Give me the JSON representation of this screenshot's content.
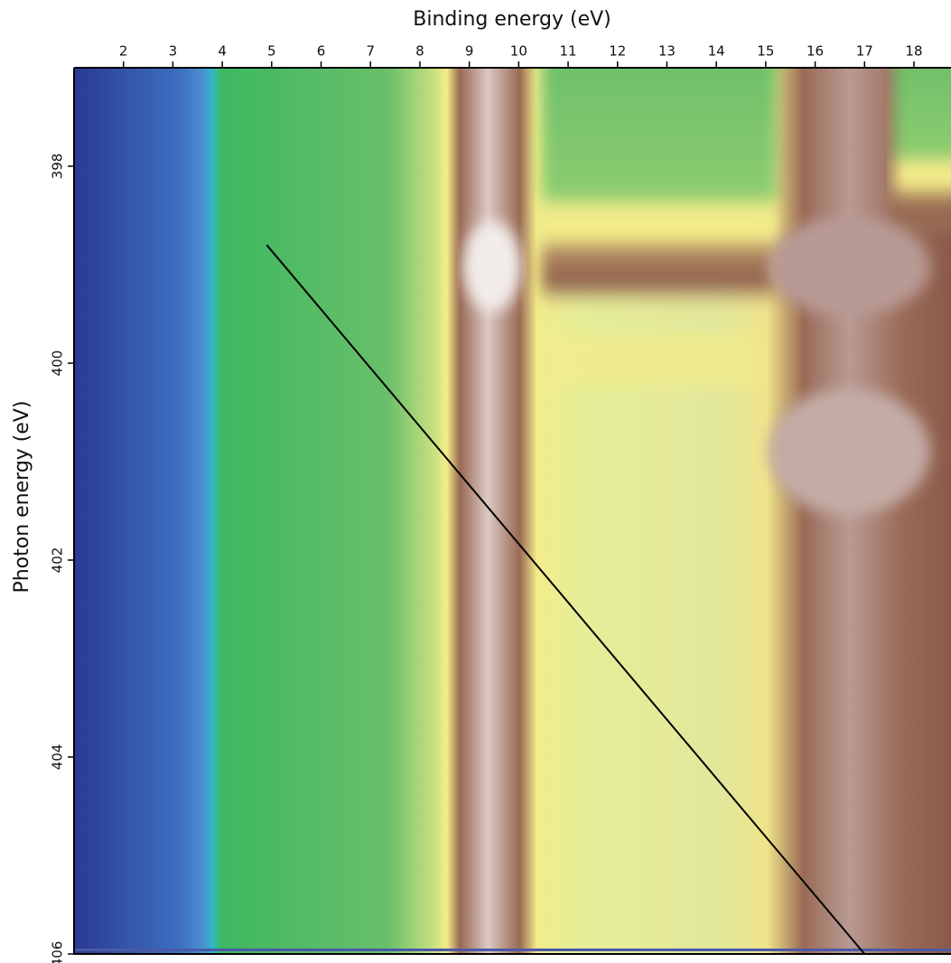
{
  "chart_data": {
    "type": "line",
    "x_label": "Binding energy (eV)",
    "y_label": "Photon energy (eV)",
    "x": [
      4.9,
      17.0
    ],
    "values": [
      398.8,
      406.0
    ],
    "color": "#000000",
    "xlim": [
      1.0,
      18.75
    ],
    "ylim": [
      406,
      397
    ],
    "xticks": [
      2,
      3,
      4,
      5,
      6,
      7,
      8,
      9,
      10,
      11,
      12,
      13,
      14,
      15,
      16,
      17,
      18
    ],
    "yticks": [
      398,
      400,
      402,
      404,
      406
    ]
  }
}
